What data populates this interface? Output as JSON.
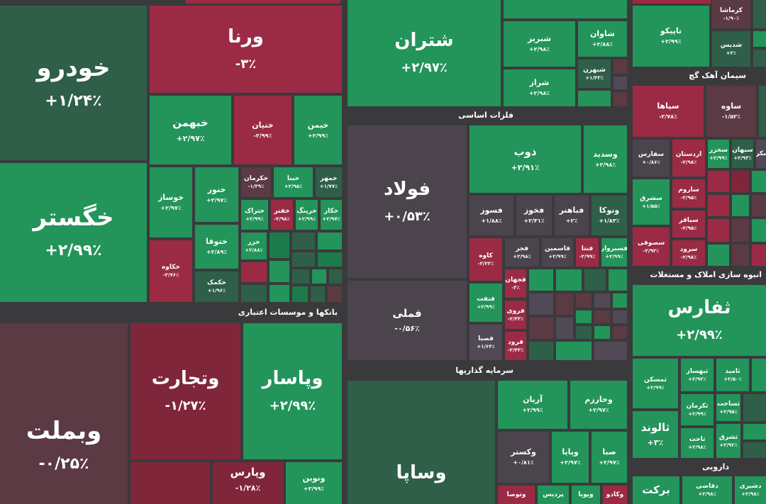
{
  "sectors": {
    "banks": "بانکها و موسسات اعتباری",
    "metals": "فلزات اساسی",
    "investment": "سرمایه گذاریها",
    "cement": "سیمان آهک گچ",
    "realestate": "انبوه سازی املاک و مستغلات",
    "pharma": "دارویی"
  },
  "tiles": {
    "khodro": {
      "name": "خودرو",
      "pct": "+۱/۲۴٪"
    },
    "vorna": {
      "name": "ورنا",
      "pct": "-۳٪"
    },
    "khegostar": {
      "name": "خگستر",
      "pct": "+۲/۹۹٪"
    },
    "khebhman": {
      "name": "خبهمن",
      "pct": "+۲/۹۷٪"
    },
    "khenian": {
      "name": "خنیان",
      "pct": "-۲/۹۹٪"
    },
    "khimon": {
      "name": "خیمن",
      "pct": "+۲/۹۹٪"
    },
    "khosaz": {
      "name": "خوساز",
      "pct": "+۲/۹۷٪"
    },
    "khnor": {
      "name": "خنور",
      "pct": "+۲/۹۷٪"
    },
    "khkarman": {
      "name": "خکرمان",
      "pct": "-۱/۳۹٪"
    },
    "khbna": {
      "name": "خبنا",
      "pct": "+۲/۹۵٪"
    },
    "khmhar": {
      "name": "خمهر",
      "pct": "+۱/۷۷٪"
    },
    "khtoga": {
      "name": "ختوقا",
      "pct": "+۲/۸۹٪"
    },
    "khtrak": {
      "name": "ختراک",
      "pct": "+۲/۹۹٪"
    },
    "khafnar": {
      "name": "خفنر",
      "pct": "-۲/۹۸٪"
    },
    "kheringe": {
      "name": "خرینگ",
      "pct": "+۲/۹۹٪"
    },
    "khkar": {
      "name": "خکار",
      "pct": "+۲/۹۷٪"
    },
    "khekave": {
      "name": "خکاوه",
      "pct": "-۲/۷۶٪"
    },
    "khkomak": {
      "name": "خکمک",
      "pct": "+۱/۹۶٪"
    },
    "khezar": {
      "name": "خزر",
      "pct": "+۲/۸۸٪"
    },
    "shetran": {
      "name": "شتران",
      "pct": "+۲/۹۷٪"
    },
    "shabriz": {
      "name": "شبریز",
      "pct": "+۲/۹۸٪"
    },
    "shavan": {
      "name": "شاوان",
      "pct": "+۲/۸۸٪"
    },
    "shiraz": {
      "name": "شراز",
      "pct": "+۲/۹۸٪"
    },
    "shebehran": {
      "name": "شبهرن",
      "pct": "+۱/۴۳٪"
    },
    "tapiko": {
      "name": "تاپیکو",
      "pct": "+۲/۹۹٪"
    },
    "kermasha": {
      "name": "کرماشا",
      "pct": "-۱/۹۰٪"
    },
    "shedis": {
      "name": "شدیس",
      "pct": "+۲٪"
    },
    "fouled": {
      "name": "فولاد",
      "pct": "+۰/۵۳٪"
    },
    "zob": {
      "name": "ذوب",
      "pct": "+۲/۹۱٪"
    },
    "vasedid": {
      "name": "وسدید",
      "pct": "+۲/۹۸٪"
    },
    "fooz": {
      "name": "فسوز",
      "pct": "+۱/۸۸٪"
    },
    "fekhoz": {
      "name": "فخوز",
      "pct": "+۲/۳۱٪"
    },
    "fabahonar": {
      "name": "فباهنر",
      "pct": "+۲٪"
    },
    "vanoka": {
      "name": "ونوکا",
      "pct": "+۱/۸۳٪"
    },
    "kaveh": {
      "name": "کاوه",
      "pct": "-۲/۲۲٪"
    },
    "fajr": {
      "name": "فجر",
      "pct": "+۲/۹۸٪"
    },
    "famasemin": {
      "name": "فاسمین",
      "pct": "+۲/۹۹٪"
    },
    "fenta": {
      "name": "فنتا",
      "pct": "-۲/۹۹٪"
    },
    "fasbozvar": {
      "name": "فسبزوار",
      "pct": "+۲/۹۹٪"
    },
    "femeli": {
      "name": "فملی",
      "pct": "-۰/۵۶٪"
    },
    "feneft": {
      "name": "فنفت",
      "pct": "+۲/۹۹٪"
    },
    "fajehan": {
      "name": "فجهان",
      "pct": "-۳٪"
    },
    "farvi": {
      "name": "فروی",
      "pct": "-۲/۳۳٪"
    },
    "farood": {
      "name": "فرود",
      "pct": "-۲/۴۳٪"
    },
    "fasaba": {
      "name": "فصبا",
      "pct": "+۱/۶۴٪"
    },
    "sepaha": {
      "name": "سپاها",
      "pct": "-۲/۷۸٪"
    },
    "saveh": {
      "name": "ساوه",
      "pct": "-۱/۵۲٪"
    },
    "safars": {
      "name": "سفارس",
      "pct": "+۰/۸۶٪"
    },
    "sardestan": {
      "name": "اردستان",
      "pct": "-۲/۹۸٪"
    },
    "sakhzar": {
      "name": "سخزر",
      "pct": "+۲/۹۹٪"
    },
    "sahan": {
      "name": "سبهان",
      "pct": "+۲/۹۳٪"
    },
    "sarom": {
      "name": "ساروم",
      "pct": "-۲/۹۵٪"
    },
    "sashargh": {
      "name": "سشرق",
      "pct": "+۱/۵۵٪"
    },
    "sabagher": {
      "name": "سباقر",
      "pct": "-۲/۹۵٪"
    },
    "sasofi": {
      "name": "سصوفی",
      "pct": "-۲/۹۲٪"
    },
    "sarood": {
      "name": "سرود",
      "pct": "-۲/۹۸٪"
    },
    "sakord": {
      "name": "سکرد",
      "pct": ""
    },
    "vebmelat": {
      "name": "وبملت",
      "pct": "-۰/۲۵٪"
    },
    "vtejarat": {
      "name": "وتجارت",
      "pct": "-۱/۲۷٪"
    },
    "vpasar": {
      "name": "وپاسار",
      "pct": "+۲/۹۹٪"
    },
    "vparis": {
      "name": "وپارس",
      "pct": "-۱/۲۸٪"
    },
    "vnovin": {
      "name": "ونوین",
      "pct": "+۲/۹۹٪"
    },
    "vasapa": {
      "name": "وساپا",
      "pct": ""
    },
    "aryan": {
      "name": "آریان",
      "pct": "+۲/۹۹٪"
    },
    "vkharazm": {
      "name": "وخارزم",
      "pct": "+۲/۹۷٪"
    },
    "vkestar": {
      "name": "وکستر",
      "pct": "+۰/۸۱٪"
    },
    "vpaya": {
      "name": "وپایا",
      "pct": "+۲/۹۷٪"
    },
    "saba": {
      "name": "صبا",
      "pct": "+۲/۹۷٪"
    },
    "vtosa": {
      "name": "وتوصا",
      "pct": ""
    },
    "pardis": {
      "name": "پردیس",
      "pct": ""
    },
    "vpoya": {
      "name": "وپویا",
      "pct": ""
    },
    "vkado": {
      "name": "وکادو",
      "pct": ""
    },
    "thefars": {
      "name": "ثفارس",
      "pct": "+۲/۹۹٪"
    },
    "themasken": {
      "name": "ثمسکن",
      "pct": "+۲/۹۹٪"
    },
    "thebahsaz": {
      "name": "ثبهساز",
      "pct": "+۲/۹۲٪"
    },
    "thamid": {
      "name": "ثامید",
      "pct": "+۲/۵۰٪"
    },
    "thekerman": {
      "name": "ثکرمان",
      "pct": "+۲/۹۹٪"
    },
    "thesakht": {
      "name": "ثساخت",
      "pct": "+۲/۹۵٪"
    },
    "thelond": {
      "name": "ثالوند",
      "pct": "+۳٪"
    },
    "theshargh": {
      "name": "ثشرق",
      "pct": "+۲/۹۲٪"
    },
    "thakht": {
      "name": "ثاخت",
      "pct": "+۲/۹۸٪"
    },
    "bereket": {
      "name": "برکت",
      "pct": ""
    },
    "dafaghi": {
      "name": "دفاضی",
      "pct": "+۲/۹۸٪"
    },
    "dashiri": {
      "name": "دشیری",
      "pct": "+۲/۹۸٪"
    }
  }
}
